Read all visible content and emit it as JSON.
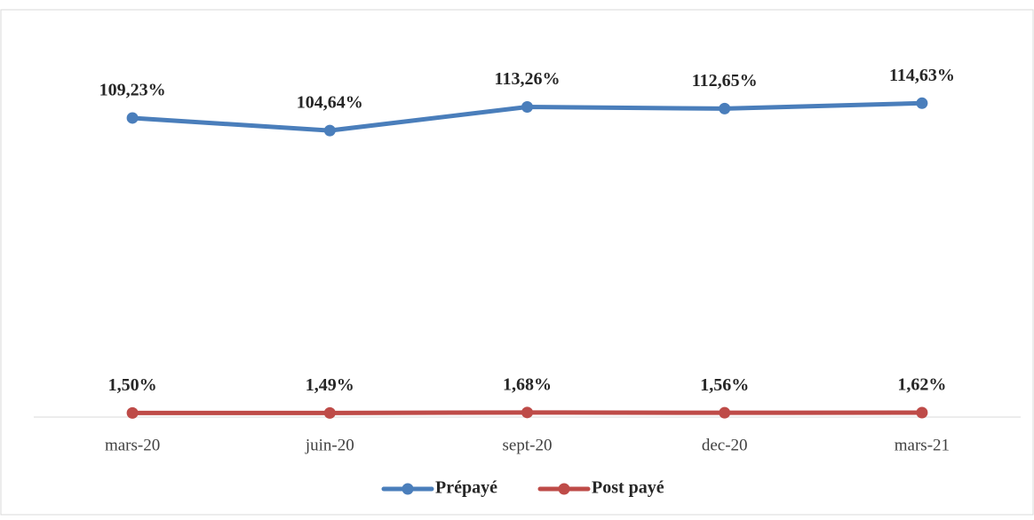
{
  "chart_data": {
    "type": "line",
    "categories": [
      "mars-20",
      "juin-20",
      "sept-20",
      "dec-20",
      "mars-21"
    ],
    "series": [
      {
        "name": "Prépayé",
        "color": "#4a7ebb",
        "values": [
          109.23,
          104.64,
          113.26,
          112.65,
          114.63
        ],
        "value_labels": [
          "109,23%",
          "104,64%",
          "113,26%",
          "112,65%",
          "114,63%"
        ]
      },
      {
        "name": "Post payé",
        "color": "#be4b48",
        "values": [
          1.5,
          1.49,
          1.68,
          1.56,
          1.62
        ],
        "value_labels": [
          "1,50%",
          "1,49%",
          "1,68%",
          "1,56%",
          "1,62%"
        ]
      }
    ],
    "ylim": [
      0,
      140
    ],
    "legend": "bottom"
  }
}
